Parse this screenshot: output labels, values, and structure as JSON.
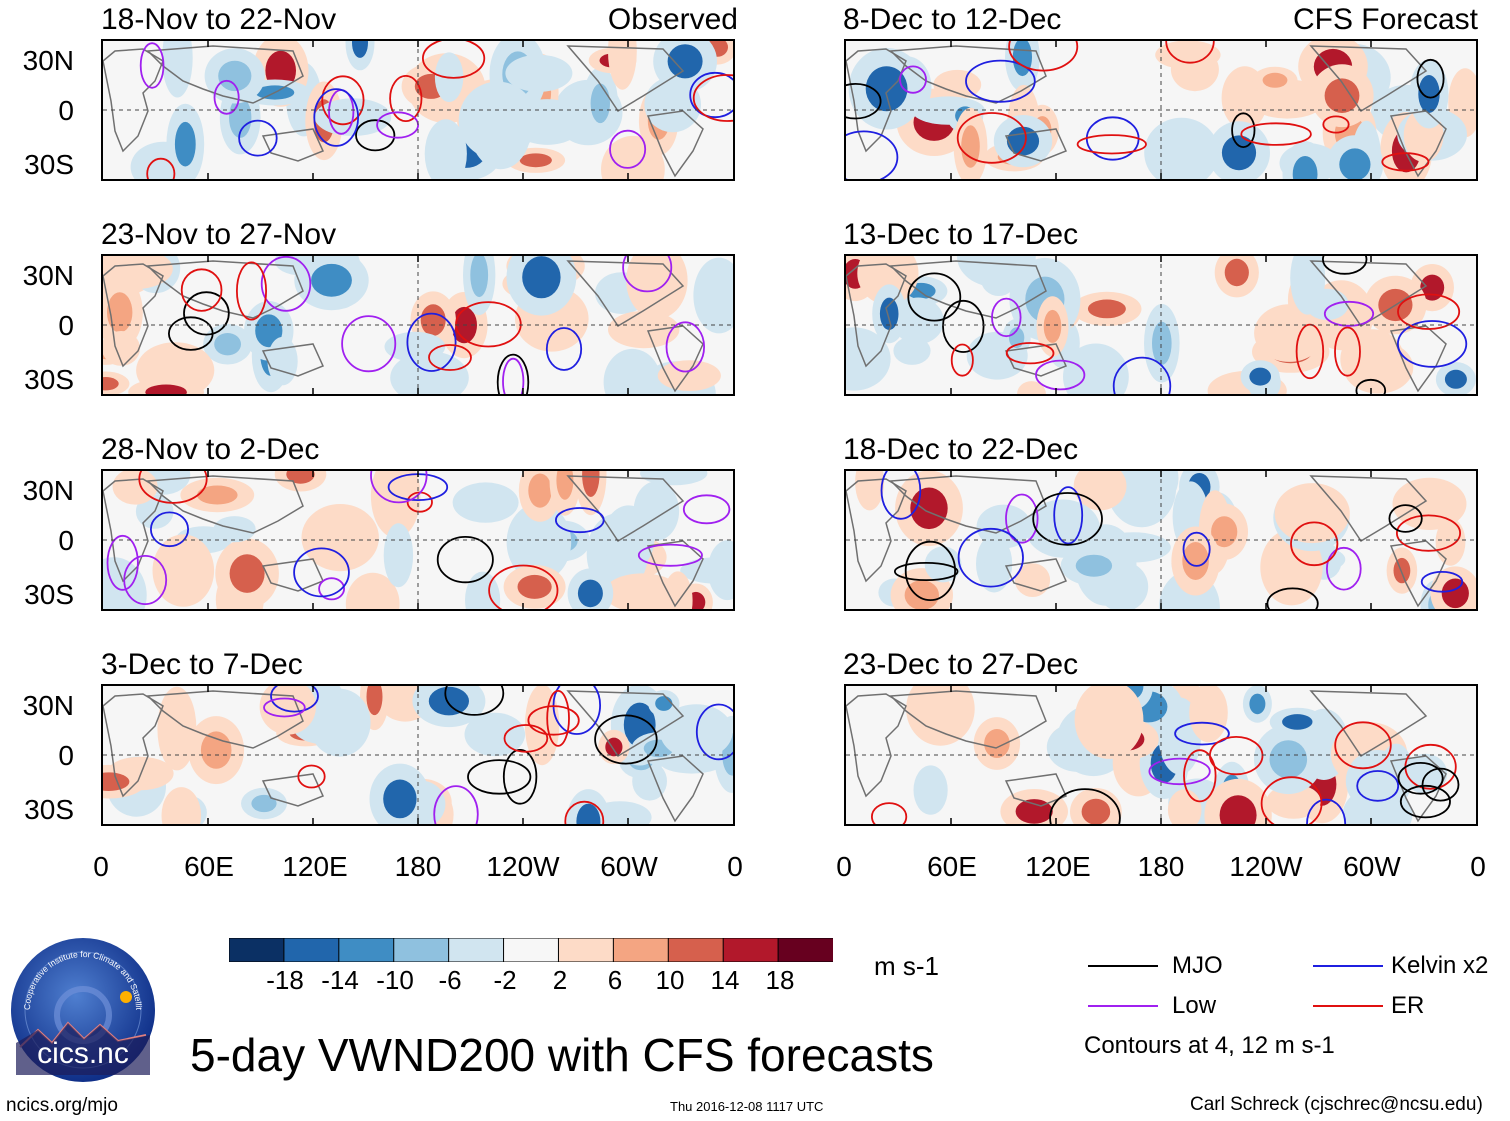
{
  "chart_data": {
    "type": "heatmap",
    "title": "5-day VWND200 with CFS forecasts",
    "variable": "VWND200",
    "units": "m s-1",
    "latitude_ticks": [
      "30N",
      "0",
      "30S"
    ],
    "longitude_ticks": [
      "0",
      "60E",
      "120E",
      "180",
      "120W",
      "60W",
      "0"
    ],
    "colorbar": {
      "levels": [
        "-18",
        "-14",
        "-10",
        "-6",
        "-2",
        "2",
        "6",
        "10",
        "14",
        "18"
      ],
      "colors": [
        "#0b3064",
        "#2166ac",
        "#3f8dc4",
        "#8fc1df",
        "#d1e5f0",
        "#f7f7f7",
        "#fddbc7",
        "#f4a582",
        "#d6604d",
        "#b2182b",
        "#67001f"
      ]
    },
    "columns": [
      {
        "tag": "Observed",
        "panels": [
          {
            "title": "18-Nov to 22-Nov"
          },
          {
            "title": "23-Nov to 27-Nov"
          },
          {
            "title": "28-Nov to 2-Dec"
          },
          {
            "title": "3-Dec to 7-Dec"
          }
        ]
      },
      {
        "tag": "CFS Forecast",
        "panels": [
          {
            "title": "8-Dec to 12-Dec"
          },
          {
            "title": "13-Dec to 17-Dec"
          },
          {
            "title": "18-Dec to 22-Dec"
          },
          {
            "title": "23-Dec to 27-Dec"
          }
        ]
      }
    ],
    "contour_legend": {
      "items": [
        {
          "label": "MJO",
          "color": "#000000"
        },
        {
          "label": "Kelvin x2",
          "color": "#1f1fe0"
        },
        {
          "label": "Low",
          "color": "#a020f0"
        },
        {
          "label": "ER",
          "color": "#e01010"
        }
      ],
      "note": "Contours at 4, 12 m s-1"
    }
  },
  "logo": {
    "text": "cics.nc",
    "ring_text": "Cooperative Institute for Climate and Satellites"
  },
  "footer": {
    "left": "ncics.org/mjo",
    "center": "Thu 2016-12-08 1117 UTC",
    "right": "Carl Schreck (cjschrec@ncsu.edu)"
  }
}
